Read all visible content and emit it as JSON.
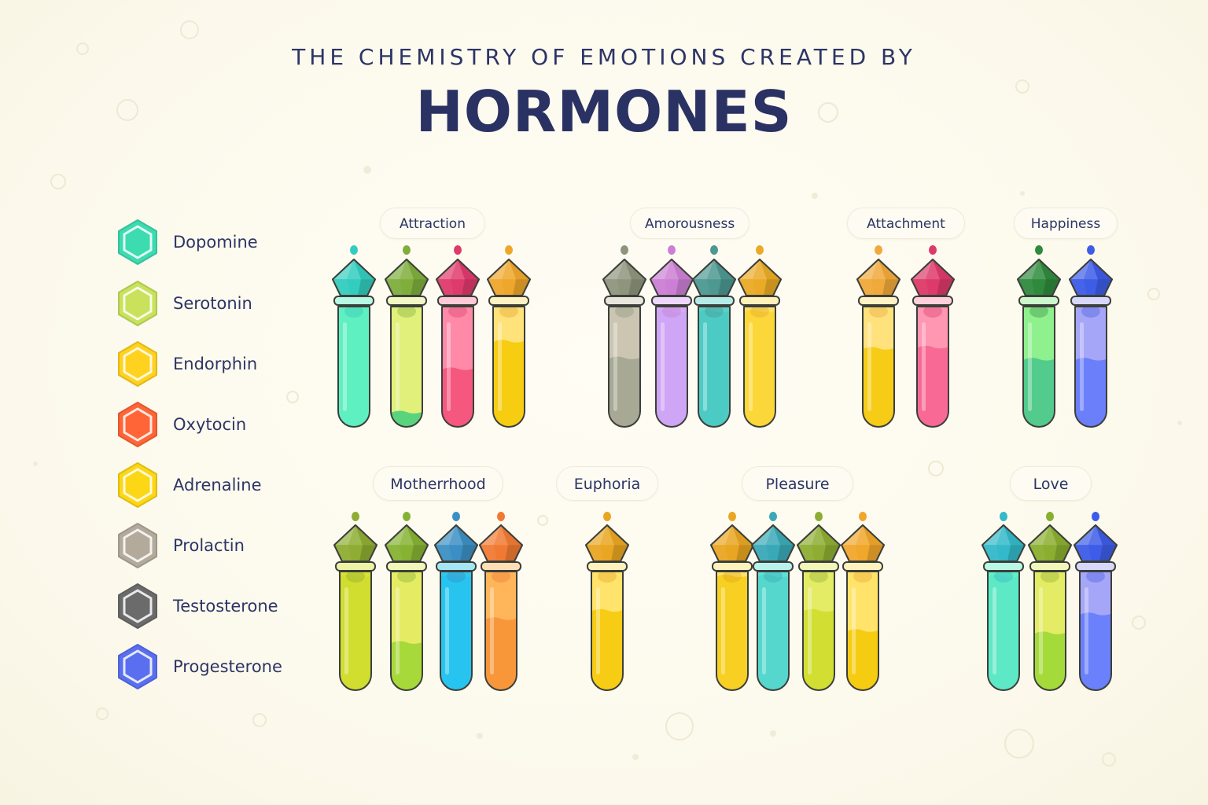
{
  "header": {
    "subtitle": "THE CHEMISTRY OF EMOTIONS CREATED BY",
    "title": "HORMONES"
  },
  "legend": [
    {
      "key": "dopamine",
      "label": "Dopomine",
      "color": "#3ddbb0"
    },
    {
      "key": "serotonin",
      "label": "Serotonin",
      "color": "#c8e25c"
    },
    {
      "key": "endorphin",
      "label": "Endorphin",
      "color": "#ffd21f"
    },
    {
      "key": "oxytocin",
      "label": "Oxytocin",
      "color": "#ff6536"
    },
    {
      "key": "adrenaline",
      "label": "Adrenaline",
      "color": "#fbd716"
    },
    {
      "key": "prolactin",
      "label": "Prolactin",
      "color": "#b3aa9c"
    },
    {
      "key": "testosterone",
      "label": "Testosterone",
      "color": "#6b6b6b"
    },
    {
      "key": "progesterone",
      "label": "Progesterone",
      "color": "#5a6ff0"
    }
  ],
  "groups": [
    {
      "label": "Attraction",
      "tubes": [
        {
          "cap": "#33cdbf",
          "glass": "#5ff0c2",
          "liquid": "#5ff0c2",
          "level": 0.97
        },
        {
          "cap": "#7fae3c",
          "glass": "#e0f07a",
          "liquid": "#5ad47c",
          "level": 0.13
        },
        {
          "cap": "#df3a6c",
          "glass": "#ff8aa8",
          "liquid": "#f5577f",
          "level": 0.49
        },
        {
          "cap": "#efa72b",
          "glass": "#ffe27a",
          "liquid": "#f7cd12",
          "level": 0.72
        }
      ]
    },
    {
      "label": "Amorousness",
      "tubes": [
        {
          "cap": "#8e957c",
          "glass": "#cbc5b1",
          "liquid": "#a7a994",
          "level": 0.58
        },
        {
          "cap": "#cc7fd4",
          "glass": "#d8a9f9",
          "liquid": "#cfa5f6",
          "level": 0.97
        },
        {
          "cap": "#4d9891",
          "glass": "#5ad2c9",
          "liquid": "#4ccbc4",
          "level": 0.97
        },
        {
          "cap": "#eaaa26",
          "glass": "#ffe066",
          "liquid": "#fcd73a",
          "level": 0.97
        }
      ]
    },
    {
      "label": "Attachment",
      "tubes": [
        {
          "cap": "#f0a93a",
          "glass": "#ffe27c",
          "liquid": "#f6cc16",
          "level": 0.66
        },
        {
          "cap": "#dd3a6a",
          "glass": "#ff96b2",
          "liquid": "#f86a95",
          "level": 0.67
        }
      ]
    },
    {
      "label": "Happiness",
      "tubes": [
        {
          "cap": "#2f8a3c",
          "glass": "#8ff08e",
          "liquid": "#52cb8c",
          "level": 0.57
        },
        {
          "cap": "#3d5ce7",
          "glass": "#a6a6f9",
          "liquid": "#6b7ffb",
          "level": 0.57
        }
      ]
    },
    {
      "label": "Motherrhood",
      "tubes": [
        {
          "cap": "#8ead32",
          "glass": "#d7e235",
          "liquid": "#d1dd2f",
          "level": 0.97
        },
        {
          "cap": "#86b232",
          "glass": "#e5ec64",
          "liquid": "#a8d93a",
          "level": 0.41
        },
        {
          "cap": "#3c8fc4",
          "glass": "#33c7ec",
          "liquid": "#27c4ef",
          "level": 0.97
        },
        {
          "cap": "#f07a33",
          "glass": "#ffb65a",
          "liquid": "#f8973a",
          "level": 0.61
        }
      ]
    },
    {
      "label": "Euphoria",
      "tubes": [
        {
          "cap": "#e9a622",
          "glass": "#ffe36a",
          "liquid": "#f6cc14",
          "level": 0.68
        }
      ]
    },
    {
      "label": "Pleasure",
      "tubes": [
        {
          "cap": "#e9a622",
          "glass": "#ffe36a",
          "liquid": "#f7d023",
          "level": 0.97
        },
        {
          "cap": "#3aa9b7",
          "glass": "#5ee2d8",
          "liquid": "#55d7ce",
          "level": 0.97
        },
        {
          "cap": "#8ead32",
          "glass": "#e3ec64",
          "liquid": "#d2df32",
          "level": 0.68
        },
        {
          "cap": "#f0a72b",
          "glass": "#ffe36a",
          "liquid": "#f6cc12",
          "level": 0.51
        }
      ]
    },
    {
      "label": "Love",
      "tubes": [
        {
          "cap": "#33b9c9",
          "glass": "#61f0c6",
          "liquid": "#5ee9c6",
          "level": 0.97
        },
        {
          "cap": "#8aae2f",
          "glass": "#e3ec64",
          "liquid": "#a4db3a",
          "level": 0.49
        },
        {
          "cap": "#3d5ce7",
          "glass": "#a6a6f9",
          "liquid": "#6b80fb",
          "level": 0.65
        }
      ]
    }
  ]
}
